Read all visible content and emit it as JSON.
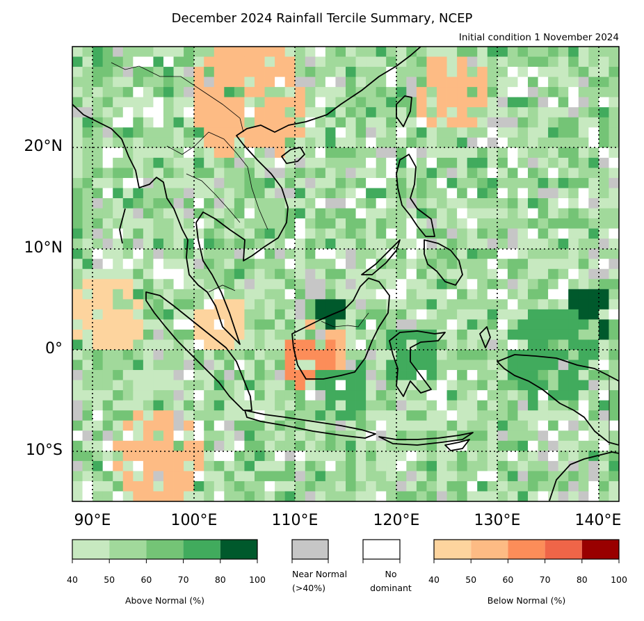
{
  "title": "December 2024 Rainfall Tercile Summary, NCEP",
  "subtitle": "Initial condition 1 November 2024",
  "map": {
    "lon_range": [
      88,
      142
    ],
    "lat_range": [
      -15,
      30
    ],
    "lat_labels": [
      "20°N",
      "10°N",
      "0°",
      "10°S"
    ],
    "lon_labels": [
      "90°E",
      "100°E",
      "110°E",
      "120°E",
      "130°E",
      "140°E"
    ]
  },
  "legend": {
    "above_normal": {
      "label": "Above Normal (%)",
      "ticks": [
        "40",
        "50",
        "60",
        "70",
        "80",
        "100"
      ],
      "colors": [
        "#c7e9c0",
        "#a1d99b",
        "#74c476",
        "#41ab5d",
        "#00592c"
      ]
    },
    "near_normal": {
      "label_line1": "Near Normal",
      "label_line2": "(>40%)",
      "color": "#c6c6c6"
    },
    "no_dominant": {
      "label_line1": "No",
      "label_line2": "dominant",
      "color": "#ffffff"
    },
    "below_normal": {
      "label": "Below Normal (%)",
      "ticks": [
        "40",
        "50",
        "60",
        "70",
        "80",
        "100"
      ],
      "colors": [
        "#fdd49e",
        "#fdbb84",
        "#fc8d59",
        "#ef6548",
        "#990000"
      ]
    }
  }
}
